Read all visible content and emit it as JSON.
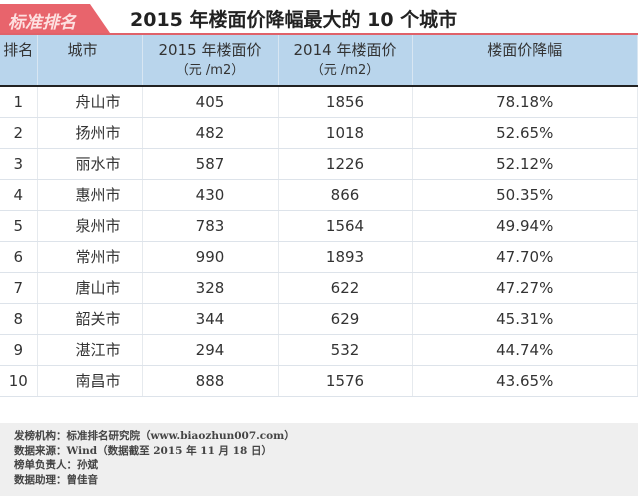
{
  "header": {
    "badge": "标准排名",
    "title": "2015 年楼面价降幅最大的 10 个城市"
  },
  "table": {
    "columns": [
      {
        "label": "排名",
        "unit": ""
      },
      {
        "label": "城市",
        "unit": ""
      },
      {
        "label": "2015 年楼面价",
        "unit": "（元 /m2）"
      },
      {
        "label": "2014 年楼面价",
        "unit": "（元 /m2）"
      },
      {
        "label": "楼面价降幅",
        "unit": ""
      }
    ],
    "rows": [
      [
        "1",
        "舟山市",
        "405",
        "1856",
        "78.18%"
      ],
      [
        "2",
        "扬州市",
        "482",
        "1018",
        "52.65%"
      ],
      [
        "3",
        "丽水市",
        "587",
        "1226",
        "52.12%"
      ],
      [
        "4",
        "惠州市",
        "430",
        "866",
        "50.35%"
      ],
      [
        "5",
        "泉州市",
        "783",
        "1564",
        "49.94%"
      ],
      [
        "6",
        "常州市",
        "990",
        "1893",
        "47.70%"
      ],
      [
        "7",
        "唐山市",
        "328",
        "622",
        "47.27%"
      ],
      [
        "8",
        "韶关市",
        "344",
        "629",
        "45.31%"
      ],
      [
        "9",
        "湛江市",
        "294",
        "532",
        "44.74%"
      ],
      [
        "10",
        "南昌市",
        "888",
        "1576",
        "43.65%"
      ]
    ]
  },
  "footer": [
    "发榜机构：标准排名研究院（www.biaozhun007.com）",
    "数据来源：Wind（数据截至 2015 年 11 月 18 日）",
    "榜单负责人：孙斌",
    "数据助理：曾佳音"
  ],
  "colors": {
    "accent": "#e8646c",
    "header_bg": "#b9d5ec"
  }
}
